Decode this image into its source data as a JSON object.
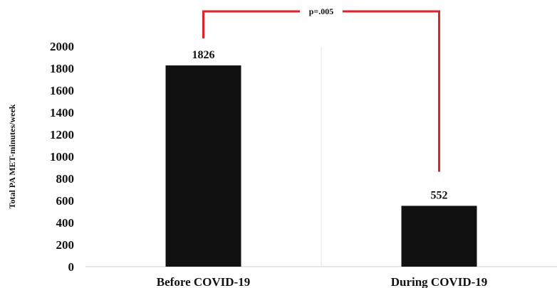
{
  "chart_data": {
    "type": "bar",
    "title": "",
    "xlabel": "",
    "ylabel": "Total PA MET-minutes/week",
    "categories": [
      "Before COVID-19",
      "During COVID-19"
    ],
    "values": [
      1826,
      552
    ],
    "data_labels": [
      "1826",
      "552"
    ],
    "ylim": [
      0,
      2000
    ],
    "yticks": [
      0,
      200,
      400,
      600,
      800,
      1000,
      1200,
      1400,
      1600,
      1800,
      2000
    ],
    "grid": "vertical separator only",
    "legend": "none",
    "bar_color": "#111111",
    "annotation": {
      "text": "p=.005",
      "type": "significance-bracket",
      "color": "#e0202a"
    }
  }
}
